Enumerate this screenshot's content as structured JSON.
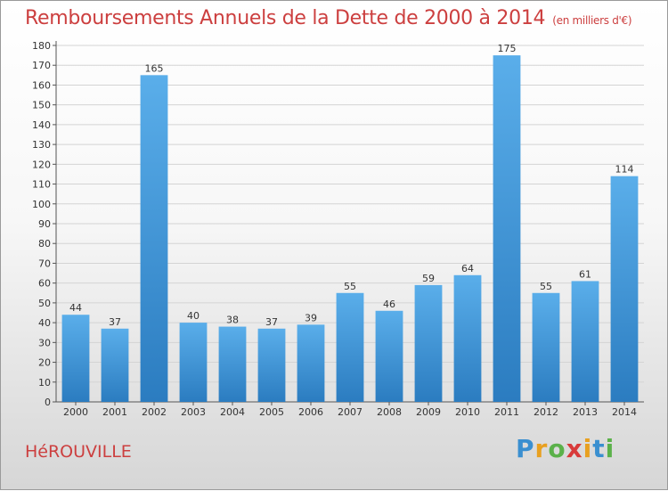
{
  "header": {
    "title": "Remboursements Annuels de la Dette de 2000 à 2014",
    "unit": "(en milliers d'€)"
  },
  "footer": {
    "commune": "HéROUVILLE",
    "logo": "Proxiti"
  },
  "colors": {
    "title": "#cc3f3f",
    "bar_top": "#5aaeea",
    "bar_bottom": "#2b7cc0",
    "grid": "#d4d4d4"
  },
  "chart_data": {
    "type": "bar",
    "categories": [
      "2000",
      "2001",
      "2002",
      "2003",
      "2004",
      "2005",
      "2006",
      "2007",
      "2008",
      "2009",
      "2010",
      "2011",
      "2012",
      "2013",
      "2014"
    ],
    "values": [
      44,
      37,
      165,
      40,
      38,
      37,
      39,
      55,
      46,
      59,
      64,
      175,
      55,
      61,
      114
    ],
    "ylim": [
      0,
      180
    ],
    "ytick_step": 10,
    "grid": true
  }
}
